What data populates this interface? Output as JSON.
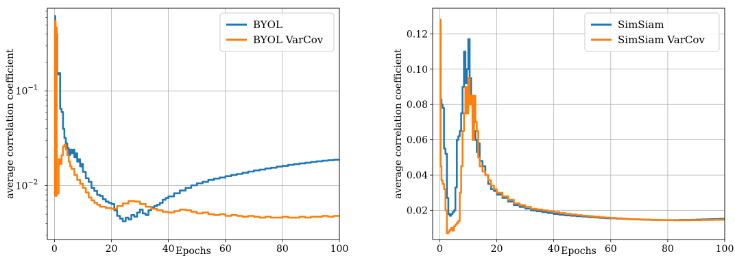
{
  "chart_data": [
    {
      "type": "line",
      "xlabel": "Epochs",
      "ylabel": "average correlation coefficient",
      "xlim": [
        -2.5,
        100
      ],
      "ylim": [
        0.0027,
        0.75
      ],
      "yscale": "log",
      "grid": true,
      "legend": "top-right",
      "xticks": [
        0,
        20,
        40,
        60,
        80,
        100
      ],
      "yticks": [
        {
          "value": 0.01,
          "base": "10",
          "exp": "−2"
        },
        {
          "value": 0.1,
          "base": "10",
          "exp": "−1"
        }
      ],
      "series": [
        {
          "name": "BYOL",
          "color": "#1f77b4",
          "x": [
            0,
            0.3,
            0.6,
            1,
            1.5,
            2,
            2.5,
            3,
            3.5,
            4,
            4.5,
            5,
            5.5,
            6,
            6.5,
            7,
            7.5,
            8,
            8.5,
            9,
            9.5,
            10,
            11,
            12,
            13,
            14,
            15,
            16,
            17,
            18,
            19,
            20,
            21,
            22,
            23,
            24,
            25,
            26,
            27,
            28,
            29,
            30,
            31,
            32,
            33,
            34,
            35,
            36,
            37,
            38,
            39,
            40,
            42,
            44,
            46,
            48,
            50,
            52,
            54,
            56,
            58,
            60,
            62,
            64,
            66,
            68,
            70,
            72,
            74,
            76,
            78,
            80,
            82,
            84,
            86,
            88,
            90,
            92,
            94,
            96,
            98,
            100
          ],
          "y": [
            0.62,
            0.42,
            0.4,
            0.15,
            0.155,
            0.065,
            0.06,
            0.04,
            0.032,
            0.028,
            0.025,
            0.021,
            0.024,
            0.022,
            0.024,
            0.02,
            0.022,
            0.018,
            0.019,
            0.016,
            0.017,
            0.014,
            0.012,
            0.011,
            0.0095,
            0.0088,
            0.008,
            0.0078,
            0.0072,
            0.0068,
            0.0066,
            0.0064,
            0.0055,
            0.0048,
            0.0045,
            0.0042,
            0.0046,
            0.0044,
            0.0049,
            0.0047,
            0.0052,
            0.0056,
            0.0051,
            0.0049,
            0.0055,
            0.0059,
            0.0061,
            0.0063,
            0.0066,
            0.0071,
            0.0074,
            0.0077,
            0.0083,
            0.0089,
            0.0095,
            0.0101,
            0.0106,
            0.011,
            0.0115,
            0.0119,
            0.0122,
            0.0126,
            0.013,
            0.0133,
            0.0137,
            0.0141,
            0.0145,
            0.0148,
            0.0152,
            0.0155,
            0.0159,
            0.0162,
            0.0166,
            0.0169,
            0.0172,
            0.0175,
            0.0178,
            0.0181,
            0.0184,
            0.0186,
            0.0188,
            0.019
          ]
        },
        {
          "name": "BYOL VarCov",
          "color": "#ff7f0e",
          "x": [
            0,
            0.2,
            0.4,
            0.6,
            0.8,
            1,
            1.5,
            2,
            2.5,
            3,
            3.5,
            4,
            4.5,
            5,
            5.5,
            6,
            7,
            8,
            9,
            10,
            11,
            12,
            13,
            14,
            15,
            16,
            18,
            20,
            22,
            24,
            26,
            28,
            30,
            32,
            34,
            36,
            38,
            40,
            42,
            44,
            46,
            48,
            50,
            52,
            54,
            56,
            58,
            60,
            62,
            64,
            66,
            68,
            70,
            72,
            74,
            76,
            78,
            80,
            82,
            84,
            86,
            88,
            90,
            92,
            94,
            96,
            98,
            100
          ],
          "y": [
            0.0078,
            0.55,
            0.0078,
            0.47,
            0.008,
            0.0083,
            0.019,
            0.017,
            0.021,
            0.026,
            0.027,
            0.024,
            0.021,
            0.018,
            0.016,
            0.015,
            0.013,
            0.0115,
            0.0105,
            0.0095,
            0.0085,
            0.0075,
            0.007,
            0.0066,
            0.0063,
            0.006,
            0.0058,
            0.0057,
            0.0061,
            0.0065,
            0.0069,
            0.0068,
            0.0064,
            0.006,
            0.0057,
            0.0055,
            0.0053,
            0.0052,
            0.0054,
            0.0056,
            0.0055,
            0.0053,
            0.0051,
            0.0052,
            0.005,
            0.0049,
            0.005,
            0.0048,
            0.0049,
            0.0048,
            0.0047,
            0.0048,
            0.0047,
            0.0046,
            0.0047,
            0.0046,
            0.0046,
            0.0047,
            0.0046,
            0.0046,
            0.0047,
            0.0046,
            0.0047,
            0.0047,
            0.0048,
            0.0047,
            0.0048,
            0.0048
          ]
        }
      ]
    },
    {
      "type": "line",
      "xlabel": "Epochs",
      "ylabel": "average correlation coefficient",
      "xlim": [
        -2.5,
        100
      ],
      "ylim": [
        0.0035,
        0.1345
      ],
      "yscale": "linear",
      "grid": true,
      "legend": "top-right",
      "xticks": [
        0,
        20,
        40,
        60,
        80,
        100
      ],
      "yticks": [
        0.02,
        0.04,
        0.06,
        0.08,
        0.1,
        0.12
      ],
      "yticklabels": [
        "0.02",
        "0.04",
        "0.06",
        "0.08",
        "0.10",
        "0.12"
      ],
      "series": [
        {
          "name": "SimSiam",
          "color": "#1f77b4",
          "x": [
            0,
            0.3,
            0.6,
            1,
            1.5,
            2,
            2.5,
            3,
            3.5,
            4,
            4.5,
            5,
            5.5,
            6,
            6.5,
            7,
            7.5,
            8,
            8.5,
            9,
            9.5,
            10,
            10.5,
            11,
            11.5,
            12,
            12.5,
            13,
            13.5,
            14,
            15,
            16,
            17,
            18,
            19,
            20,
            22,
            24,
            26,
            28,
            30,
            32,
            34,
            36,
            38,
            40,
            42,
            44,
            46,
            48,
            50,
            52,
            54,
            56,
            58,
            60,
            62,
            64,
            66,
            68,
            70,
            72,
            74,
            76,
            78,
            80,
            82,
            84,
            86,
            88,
            90,
            92,
            94,
            96,
            98,
            100
          ],
          "y": [
            0.125,
            0.083,
            0.08,
            0.078,
            0.055,
            0.052,
            0.027,
            0.018,
            0.017,
            0.018,
            0.019,
            0.02,
            0.033,
            0.06,
            0.062,
            0.065,
            0.075,
            0.09,
            0.11,
            0.092,
            0.1,
            0.117,
            0.095,
            0.085,
            0.07,
            0.065,
            0.06,
            0.053,
            0.058,
            0.048,
            0.045,
            0.04,
            0.035,
            0.032,
            0.031,
            0.029,
            0.027,
            0.025,
            0.023,
            0.022,
            0.021,
            0.02,
            0.0195,
            0.019,
            0.0185,
            0.018,
            0.0175,
            0.0172,
            0.017,
            0.0167,
            0.0165,
            0.0162,
            0.016,
            0.0158,
            0.0156,
            0.0155,
            0.0153,
            0.0152,
            0.015,
            0.0149,
            0.0148,
            0.0147,
            0.0146,
            0.0146,
            0.0145,
            0.0145,
            0.0145,
            0.0146,
            0.0146,
            0.0147,
            0.0148,
            0.0149,
            0.015,
            0.0151,
            0.0152,
            0.0152
          ]
        },
        {
          "name": "SimSiam VarCov",
          "color": "#ff7f0e",
          "x": [
            0,
            0.3,
            0.6,
            1,
            1.5,
            2,
            2.5,
            3,
            3.5,
            4,
            4.5,
            5,
            5.5,
            6,
            6.5,
            7,
            7.5,
            8,
            8.5,
            9,
            9.5,
            10,
            10.5,
            11,
            11.5,
            12,
            12.5,
            13,
            13.5,
            14,
            15,
            16,
            17,
            18,
            19,
            20,
            22,
            24,
            26,
            28,
            30,
            32,
            34,
            36,
            38,
            40,
            42,
            44,
            46,
            48,
            50,
            52,
            54,
            56,
            58,
            60,
            62,
            64,
            66,
            68,
            70,
            72,
            74,
            76,
            78,
            80,
            82,
            84,
            86,
            88,
            90,
            92,
            94,
            96,
            98,
            100
          ],
          "y": [
            0.128,
            0.045,
            0.037,
            0.035,
            0.032,
            0.02,
            0.007,
            0.008,
            0.009,
            0.01,
            0.0085,
            0.011,
            0.012,
            0.013,
            0.014,
            0.03,
            0.045,
            0.065,
            0.075,
            0.09,
            0.075,
            0.095,
            0.08,
            0.085,
            0.06,
            0.085,
            0.07,
            0.065,
            0.05,
            0.045,
            0.042,
            0.04,
            0.037,
            0.034,
            0.032,
            0.03,
            0.028,
            0.026,
            0.024,
            0.023,
            0.022,
            0.021,
            0.0205,
            0.02,
            0.0195,
            0.019,
            0.0185,
            0.018,
            0.0177,
            0.0173,
            0.017,
            0.0167,
            0.0164,
            0.0161,
            0.0159,
            0.0157,
            0.0155,
            0.0153,
            0.0151,
            0.015,
            0.0149,
            0.0148,
            0.0147,
            0.0146,
            0.0145,
            0.0145,
            0.0144,
            0.0144,
            0.0144,
            0.0145,
            0.0145,
            0.0146,
            0.0146,
            0.0147,
            0.0147,
            0.0148
          ]
        }
      ]
    }
  ]
}
